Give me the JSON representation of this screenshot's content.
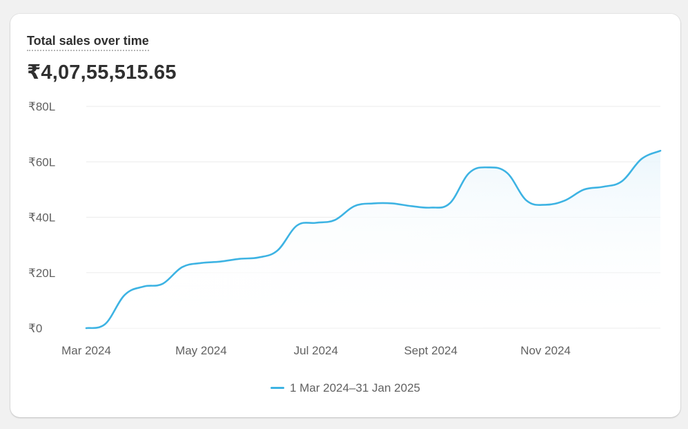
{
  "card": {
    "title": "Total sales over time",
    "total": "₹4,07,55,515.65"
  },
  "colors": {
    "line": "#3db3e3",
    "grid": "#ebebeb",
    "area_top": "#eaf6fc"
  },
  "chart_data": {
    "type": "line",
    "title": "Total sales over time",
    "xlabel": "",
    "ylabel": "",
    "ylim": [
      0,
      80
    ],
    "y_unit": "lakh ₹",
    "y_ticks": [
      {
        "value": 80,
        "label": "₹80L"
      },
      {
        "value": 60,
        "label": "₹60L"
      },
      {
        "value": 40,
        "label": "₹40L"
      },
      {
        "value": 20,
        "label": "₹20L"
      },
      {
        "value": 0,
        "label": "₹0"
      }
    ],
    "x_ticks": [
      {
        "index": 0,
        "label": "Mar 2024"
      },
      {
        "index": 2,
        "label": "May 2024"
      },
      {
        "index": 4,
        "label": "Jul 2024"
      },
      {
        "index": 6,
        "label": "Sept 2024"
      },
      {
        "index": 8,
        "label": "Nov 2024"
      }
    ],
    "legend_position": "bottom",
    "grid": true,
    "series": [
      {
        "name": "1 Mar 2024–31 Jan 2025",
        "x": [
          0,
          0.33,
          0.67,
          1,
          1.33,
          1.67,
          2,
          2.33,
          2.67,
          3,
          3.33,
          3.67,
          4,
          4.33,
          4.67,
          5,
          5.33,
          5.67,
          6,
          6.33,
          6.67,
          7,
          7.33,
          7.67,
          8,
          8.33,
          8.67,
          9,
          9.33,
          9.67,
          10
        ],
        "values": [
          0,
          1.5,
          12,
          15,
          16,
          22,
          23.5,
          24,
          25,
          25.5,
          28,
          37,
          38,
          39,
          44,
          45,
          45,
          44,
          43.5,
          45,
          56,
          58,
          56,
          46,
          44.5,
          46,
          50,
          51,
          53,
          61,
          64
        ]
      }
    ]
  }
}
